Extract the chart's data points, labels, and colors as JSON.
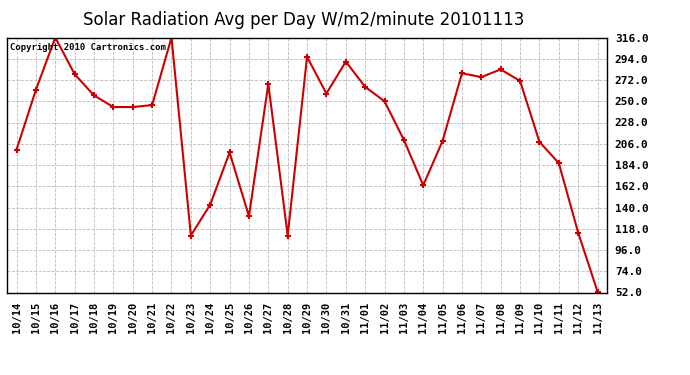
{
  "title": "Solar Radiation Avg per Day W/m2/minute 20101113",
  "copyright": "Copyright 2010 Cartronics.com",
  "labels": [
    "10/14",
    "10/15",
    "10/16",
    "10/17",
    "10/18",
    "10/19",
    "10/20",
    "10/21",
    "10/22",
    "10/23",
    "10/24",
    "10/25",
    "10/26",
    "10/27",
    "10/28",
    "10/29",
    "10/30",
    "10/31",
    "11/01",
    "11/02",
    "11/03",
    "11/04",
    "11/05",
    "11/06",
    "11/07",
    "11/08",
    "11/09",
    "11/10",
    "11/11",
    "11/12",
    "11/13"
  ],
  "values": [
    200.0,
    262.0,
    316.0,
    278.0,
    256.0,
    244.0,
    244.0,
    246.0,
    316.0,
    111.0,
    143.0,
    197.0,
    131.0,
    268.0,
    111.0,
    296.0,
    258.0,
    291.0,
    265.0,
    250.0,
    210.0,
    163.0,
    209.0,
    279.0,
    275.0,
    283.0,
    271.0,
    208.0,
    186.0,
    114.0,
    53.0
  ],
  "line_color": "#cc0000",
  "marker_color": "#cc0000",
  "bg_color": "#ffffff",
  "plot_bg_color": "#ffffff",
  "grid_color": "#bbbbbb",
  "yticks": [
    52.0,
    74.0,
    96.0,
    118.0,
    140.0,
    162.0,
    184.0,
    206.0,
    228.0,
    250.0,
    272.0,
    294.0,
    316.0
  ],
  "ymin": 52.0,
  "ymax": 316.0,
  "title_fontsize": 12,
  "copyright_fontsize": 6.5,
  "tick_fontsize": 7.5,
  "ytick_fontsize": 8
}
